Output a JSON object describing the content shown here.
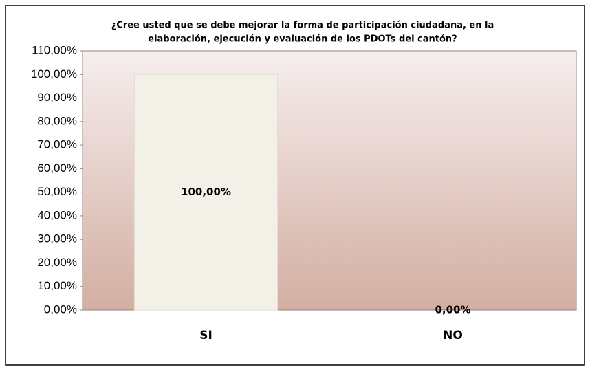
{
  "chart_data": {
    "type": "bar",
    "title": [
      "¿Cree usted que se debe mejorar la forma de participación ciudadana, en la",
      "elaboración, ejecución y evaluación de los PDOTs del cantón?"
    ],
    "categories": [
      "SI",
      "NO"
    ],
    "values": [
      100,
      0
    ],
    "value_labels": [
      "100,00%",
      "0,00%"
    ],
    "color": "#f3f1e7",
    "ylim": [
      0,
      110
    ],
    "yticks": [
      {
        "value": 0,
        "label": "0,00%"
      },
      {
        "value": 10,
        "label": "10,00%"
      },
      {
        "value": 20,
        "label": "20,00%"
      },
      {
        "value": 30,
        "label": "30,00%"
      },
      {
        "value": 40,
        "label": "40,00%"
      },
      {
        "value": 50,
        "label": "50,00%"
      },
      {
        "value": 60,
        "label": "60,00%"
      },
      {
        "value": 70,
        "label": "70,00%"
      },
      {
        "value": 80,
        "label": "80,00%"
      },
      {
        "value": 90,
        "label": "90,00%"
      },
      {
        "value": 100,
        "label": "100,00%"
      },
      {
        "value": 110,
        "label": "110,00%"
      }
    ],
    "grid": false
  }
}
